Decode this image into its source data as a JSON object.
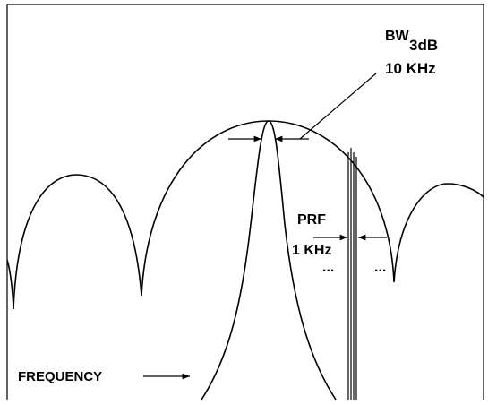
{
  "labels": {
    "bandwidth": "BW",
    "bandwidth_sub": "3dB",
    "bandwidth_value": "10 KHz",
    "prf": "PRF",
    "prf_value": "1 KHz",
    "ellipsis_left": "...",
    "ellipsis_right": "...",
    "axis": "FREQUENCY"
  }
}
